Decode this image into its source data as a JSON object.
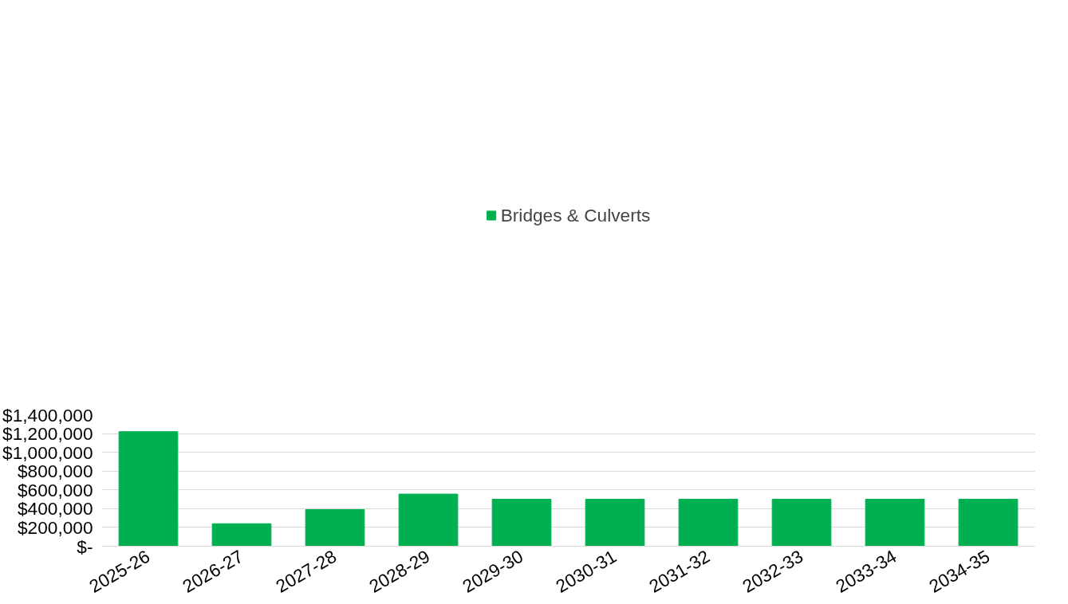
{
  "chart_data": {
    "type": "bar",
    "categories": [
      "2025-26",
      "2026-27",
      "2027-28",
      "2028-29",
      "2029-30",
      "2030-31",
      "2031-32",
      "2032-33",
      "2033-34",
      "2034-35"
    ],
    "series": [
      {
        "name": "Bridges & Culverts",
        "color": "#00b050",
        "values": [
          1220000,
          240000,
          390000,
          555000,
          500000,
          500000,
          500000,
          500000,
          500000,
          500000
        ]
      }
    ],
    "ylim": [
      0,
      1400000
    ],
    "yticks": [
      {
        "value": 0,
        "label": "$-"
      },
      {
        "value": 200000,
        "label": "$200,000"
      },
      {
        "value": 400000,
        "label": "$400,000"
      },
      {
        "value": 600000,
        "label": "$600,000"
      },
      {
        "value": 800000,
        "label": "$800,000"
      },
      {
        "value": 1000000,
        "label": "$1,000,000"
      },
      {
        "value": 1200000,
        "label": "$1,200,000"
      },
      {
        "value": 1400000,
        "label": "$1,400,000"
      }
    ],
    "grid": "y",
    "legend": "top"
  }
}
